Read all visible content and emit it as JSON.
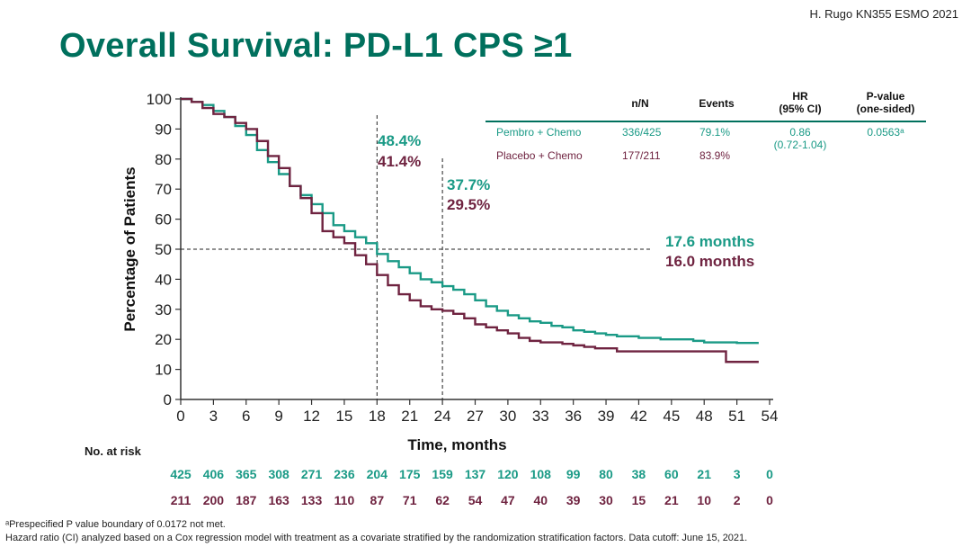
{
  "header": {
    "citation": "H. Rugo  KN355  ESMO 2021",
    "title": "Overall Survival: PD-L1 CPS ≥1"
  },
  "colors": {
    "pembro": "#1a9a86",
    "placebo": "#6f2340",
    "title": "#00705d"
  },
  "legend": {
    "headers": {
      "nN": "n/N",
      "events": "Events",
      "hr_line1": "HR",
      "hr_line2": "(95% CI)",
      "p_line1": "P-value",
      "p_line2": "(one-sided)"
    },
    "pembro": {
      "label": "Pembro + Chemo",
      "nN": "336/425",
      "events": "79.1%"
    },
    "placebo": {
      "label": "Placebo + Chemo",
      "nN": "177/211",
      "events": "83.9%"
    },
    "hr": "0.86",
    "ci": "(0.72-1.04)",
    "p": "0.0563ᵃ"
  },
  "annotations": {
    "m18_pembro": "48.4%",
    "m18_placebo": "41.4%",
    "m24_pembro": "37.7%",
    "m24_placebo": "29.5%",
    "median_pembro": "17.6 months",
    "median_placebo": "16.0 months"
  },
  "risk": {
    "label": "No. at risk",
    "pembro": [
      "425",
      "406",
      "365",
      "308",
      "271",
      "236",
      "204",
      "175",
      "159",
      "137",
      "120",
      "108",
      "99",
      "80",
      "38",
      "60",
      "21",
      "3",
      "0"
    ],
    "placebo": [
      "211",
      "200",
      "187",
      "163",
      "133",
      "110",
      "87",
      "71",
      "62",
      "54",
      "47",
      "40",
      "39",
      "30",
      "15",
      "21",
      "10",
      "2",
      "0"
    ]
  },
  "footnotes": {
    "a": "ᵃPrespecified P value boundary of 0.0172 not met.",
    "b": "Hazard ratio (CI) analyzed based on a Cox regression model  with treatment  as a covariate stratified by the randomization  stratification  factors. Data cutoff: June 15, 2021."
  },
  "chart_data": {
    "type": "line",
    "title": "Overall Survival: PD-L1 CPS ≥1",
    "xlabel": "Time, months",
    "ylabel": "Percentage of Patients",
    "xlim": [
      0,
      54
    ],
    "ylim": [
      0,
      100
    ],
    "xticks": [
      0,
      3,
      6,
      9,
      12,
      15,
      18,
      21,
      24,
      27,
      30,
      33,
      36,
      39,
      42,
      45,
      48,
      51,
      54
    ],
    "yticks": [
      0,
      10,
      20,
      30,
      40,
      50,
      60,
      70,
      80,
      90,
      100
    ],
    "reference_lines": {
      "y": 50,
      "x": [
        18,
        24
      ]
    },
    "series": [
      {
        "name": "Pembro + Chemo",
        "x": [
          0,
          1,
          2,
          3,
          4,
          5,
          6,
          7,
          8,
          9,
          10,
          11,
          12,
          13,
          14,
          15,
          16,
          17,
          18,
          19,
          20,
          21,
          22,
          23,
          24,
          25,
          26,
          27,
          28,
          29,
          30,
          31,
          32,
          33,
          34,
          35,
          36,
          37,
          38,
          39,
          40,
          41,
          42,
          43,
          44,
          45,
          46,
          47,
          48,
          49,
          50,
          51,
          52,
          53
        ],
        "y": [
          100,
          99,
          98,
          96,
          94,
          91,
          88,
          83,
          79,
          75,
          71,
          68,
          65,
          62,
          58,
          56,
          54,
          52,
          48.4,
          46,
          44,
          42,
          40,
          39,
          37.7,
          36.5,
          35,
          33,
          31,
          29.5,
          28,
          27,
          26,
          25.5,
          24.5,
          24,
          23,
          22.5,
          22,
          21.5,
          21,
          21,
          20.5,
          20.5,
          20,
          20,
          20,
          19.5,
          19,
          19,
          19,
          18.8,
          18.8,
          18.8
        ]
      },
      {
        "name": "Placebo + Chemo",
        "x": [
          0,
          1,
          2,
          3,
          4,
          5,
          6,
          7,
          8,
          9,
          10,
          11,
          12,
          13,
          14,
          15,
          16,
          17,
          18,
          19,
          20,
          21,
          22,
          23,
          24,
          25,
          26,
          27,
          28,
          29,
          30,
          31,
          32,
          33,
          34,
          35,
          36,
          37,
          38,
          39,
          40,
          41,
          42,
          43,
          44,
          45,
          46,
          47,
          48,
          49,
          50,
          51,
          52,
          53
        ],
        "y": [
          100,
          99,
          97,
          95,
          94,
          92,
          90,
          86,
          81,
          77,
          71,
          67,
          62,
          56,
          54,
          52,
          48,
          45,
          41.4,
          38,
          35,
          33,
          31,
          30,
          29.5,
          28.5,
          27,
          25,
          24,
          23,
          22,
          20.5,
          19.5,
          19,
          19,
          18.5,
          18,
          17.5,
          17,
          17,
          16,
          16,
          16,
          16,
          16,
          16,
          16,
          16,
          16,
          16,
          12.5,
          12.5,
          12.5,
          12.5
        ]
      }
    ]
  }
}
